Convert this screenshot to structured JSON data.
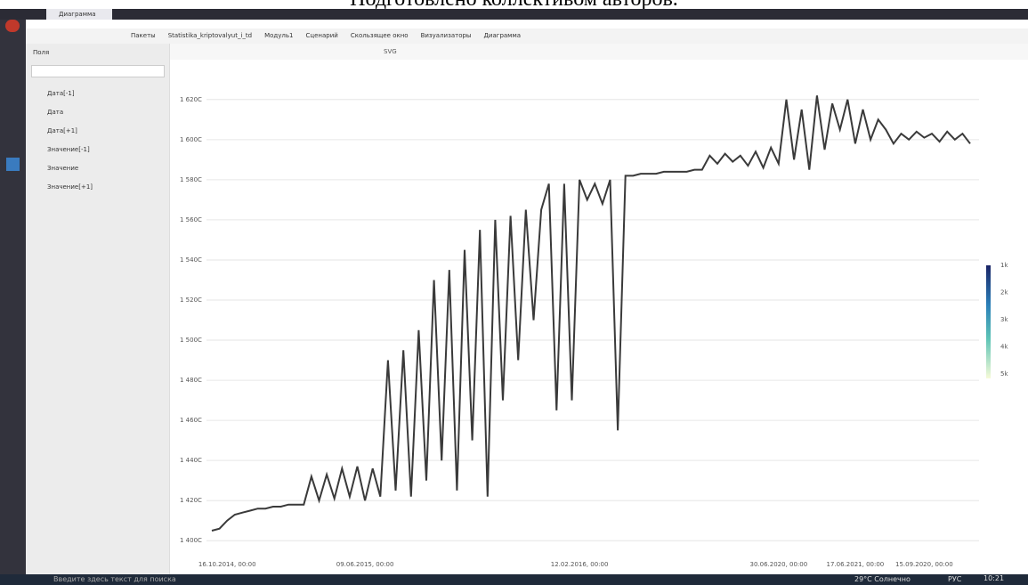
{
  "caption": "Подготовлено коллективом авторов.",
  "app": {
    "tab": "Диаграмма",
    "breadcrumbs": [
      "Пакеты",
      "Statistika_kriptovalyut_i_td",
      "Модуль1",
      "Сценарий",
      "Скользящее окно",
      "Визуализаторы",
      "Диаграмма"
    ],
    "fields_title": "Поля",
    "fields": [
      "Дата[-1]",
      "Дата",
      "Дата[+1]",
      "Значение[-1]",
      "Значение",
      "Значение[+1]"
    ],
    "export": "SVG"
  },
  "taskbar": {
    "search": "Введите здесь текст для поиска",
    "weather": "29°C Солнечно",
    "lang": "РУС",
    "time": "10:21"
  },
  "chart_data": {
    "type": "line",
    "color": "#3a3a3a",
    "grid": true,
    "categories": [
      null,
      null,
      "16.10.2014, 00:00",
      null,
      null,
      null,
      null,
      null,
      null,
      null,
      null,
      null,
      null,
      null,
      null,
      null,
      null,
      null,
      null,
      null,
      "09.06.2015, 00:00",
      null,
      null,
      null,
      null,
      null,
      null,
      null,
      null,
      null,
      null,
      null,
      null,
      null,
      null,
      null,
      null,
      null,
      null,
      null,
      null,
      null,
      null,
      null,
      null,
      null,
      null,
      null,
      "12.02.2016, 00:00",
      null,
      null,
      null,
      null,
      null,
      null,
      null,
      null,
      null,
      null,
      null,
      null,
      null,
      null,
      null,
      null,
      null,
      null,
      null,
      null,
      null,
      null,
      null,
      null,
      null,
      "30.06.2020, 00:00",
      null,
      null,
      null,
      null,
      null,
      null,
      null,
      null,
      null,
      "17.06.2021, 00:00",
      null,
      null,
      null,
      null,
      null,
      null,
      null,
      null,
      "15.09.2020, 00:00",
      null,
      null,
      null,
      null,
      null,
      null
    ],
    "values": [
      1405,
      1406,
      1410,
      1413,
      1414,
      1415,
      1416,
      1416,
      1417,
      1417,
      1418,
      1418,
      1418,
      1432,
      1420,
      1433,
      1421,
      1436,
      1422,
      1437,
      1420,
      1436,
      1422,
      1490,
      1425,
      1495,
      1422,
      1505,
      1430,
      1530,
      1440,
      1535,
      1425,
      1545,
      1450,
      1555,
      1422,
      1560,
      1470,
      1562,
      1490,
      1565,
      1510,
      1565,
      1578,
      1465,
      1578,
      1470,
      1580,
      1570,
      1578,
      1568,
      1580,
      1455,
      1582,
      1582,
      1583,
      1583,
      1583,
      1584,
      1584,
      1584,
      1584,
      1585,
      1585,
      1592,
      1588,
      1593,
      1589,
      1592,
      1587,
      1594,
      1586,
      1596,
      1588,
      1620,
      1590,
      1615,
      1585,
      1622,
      1595,
      1618,
      1605,
      1620,
      1598,
      1615,
      1600,
      1610,
      1605,
      1598,
      1603,
      1600,
      1604,
      1601,
      1603,
      1599,
      1604,
      1600,
      1603,
      1598
    ],
    "ylim": [
      1393,
      1635
    ],
    "yticks": [
      {
        "value": 1400,
        "label": "1 400C"
      },
      {
        "value": 1420,
        "label": "1 420C"
      },
      {
        "value": 1440,
        "label": "1 440C"
      },
      {
        "value": 1460,
        "label": "1 460C"
      },
      {
        "value": 1480,
        "label": "1 480C"
      },
      {
        "value": 1500,
        "label": "1 500C"
      },
      {
        "value": 1520,
        "label": "1 520C"
      },
      {
        "value": 1540,
        "label": "1 540C"
      },
      {
        "value": 1560,
        "label": "1 560C"
      },
      {
        "value": 1580,
        "label": "1 580C"
      },
      {
        "value": 1600,
        "label": "1 600C"
      },
      {
        "value": 1620,
        "label": "1 620C"
      }
    ],
    "colorbar_ticks": [
      "1k",
      "2k",
      "3k",
      "4k",
      "5k"
    ]
  }
}
